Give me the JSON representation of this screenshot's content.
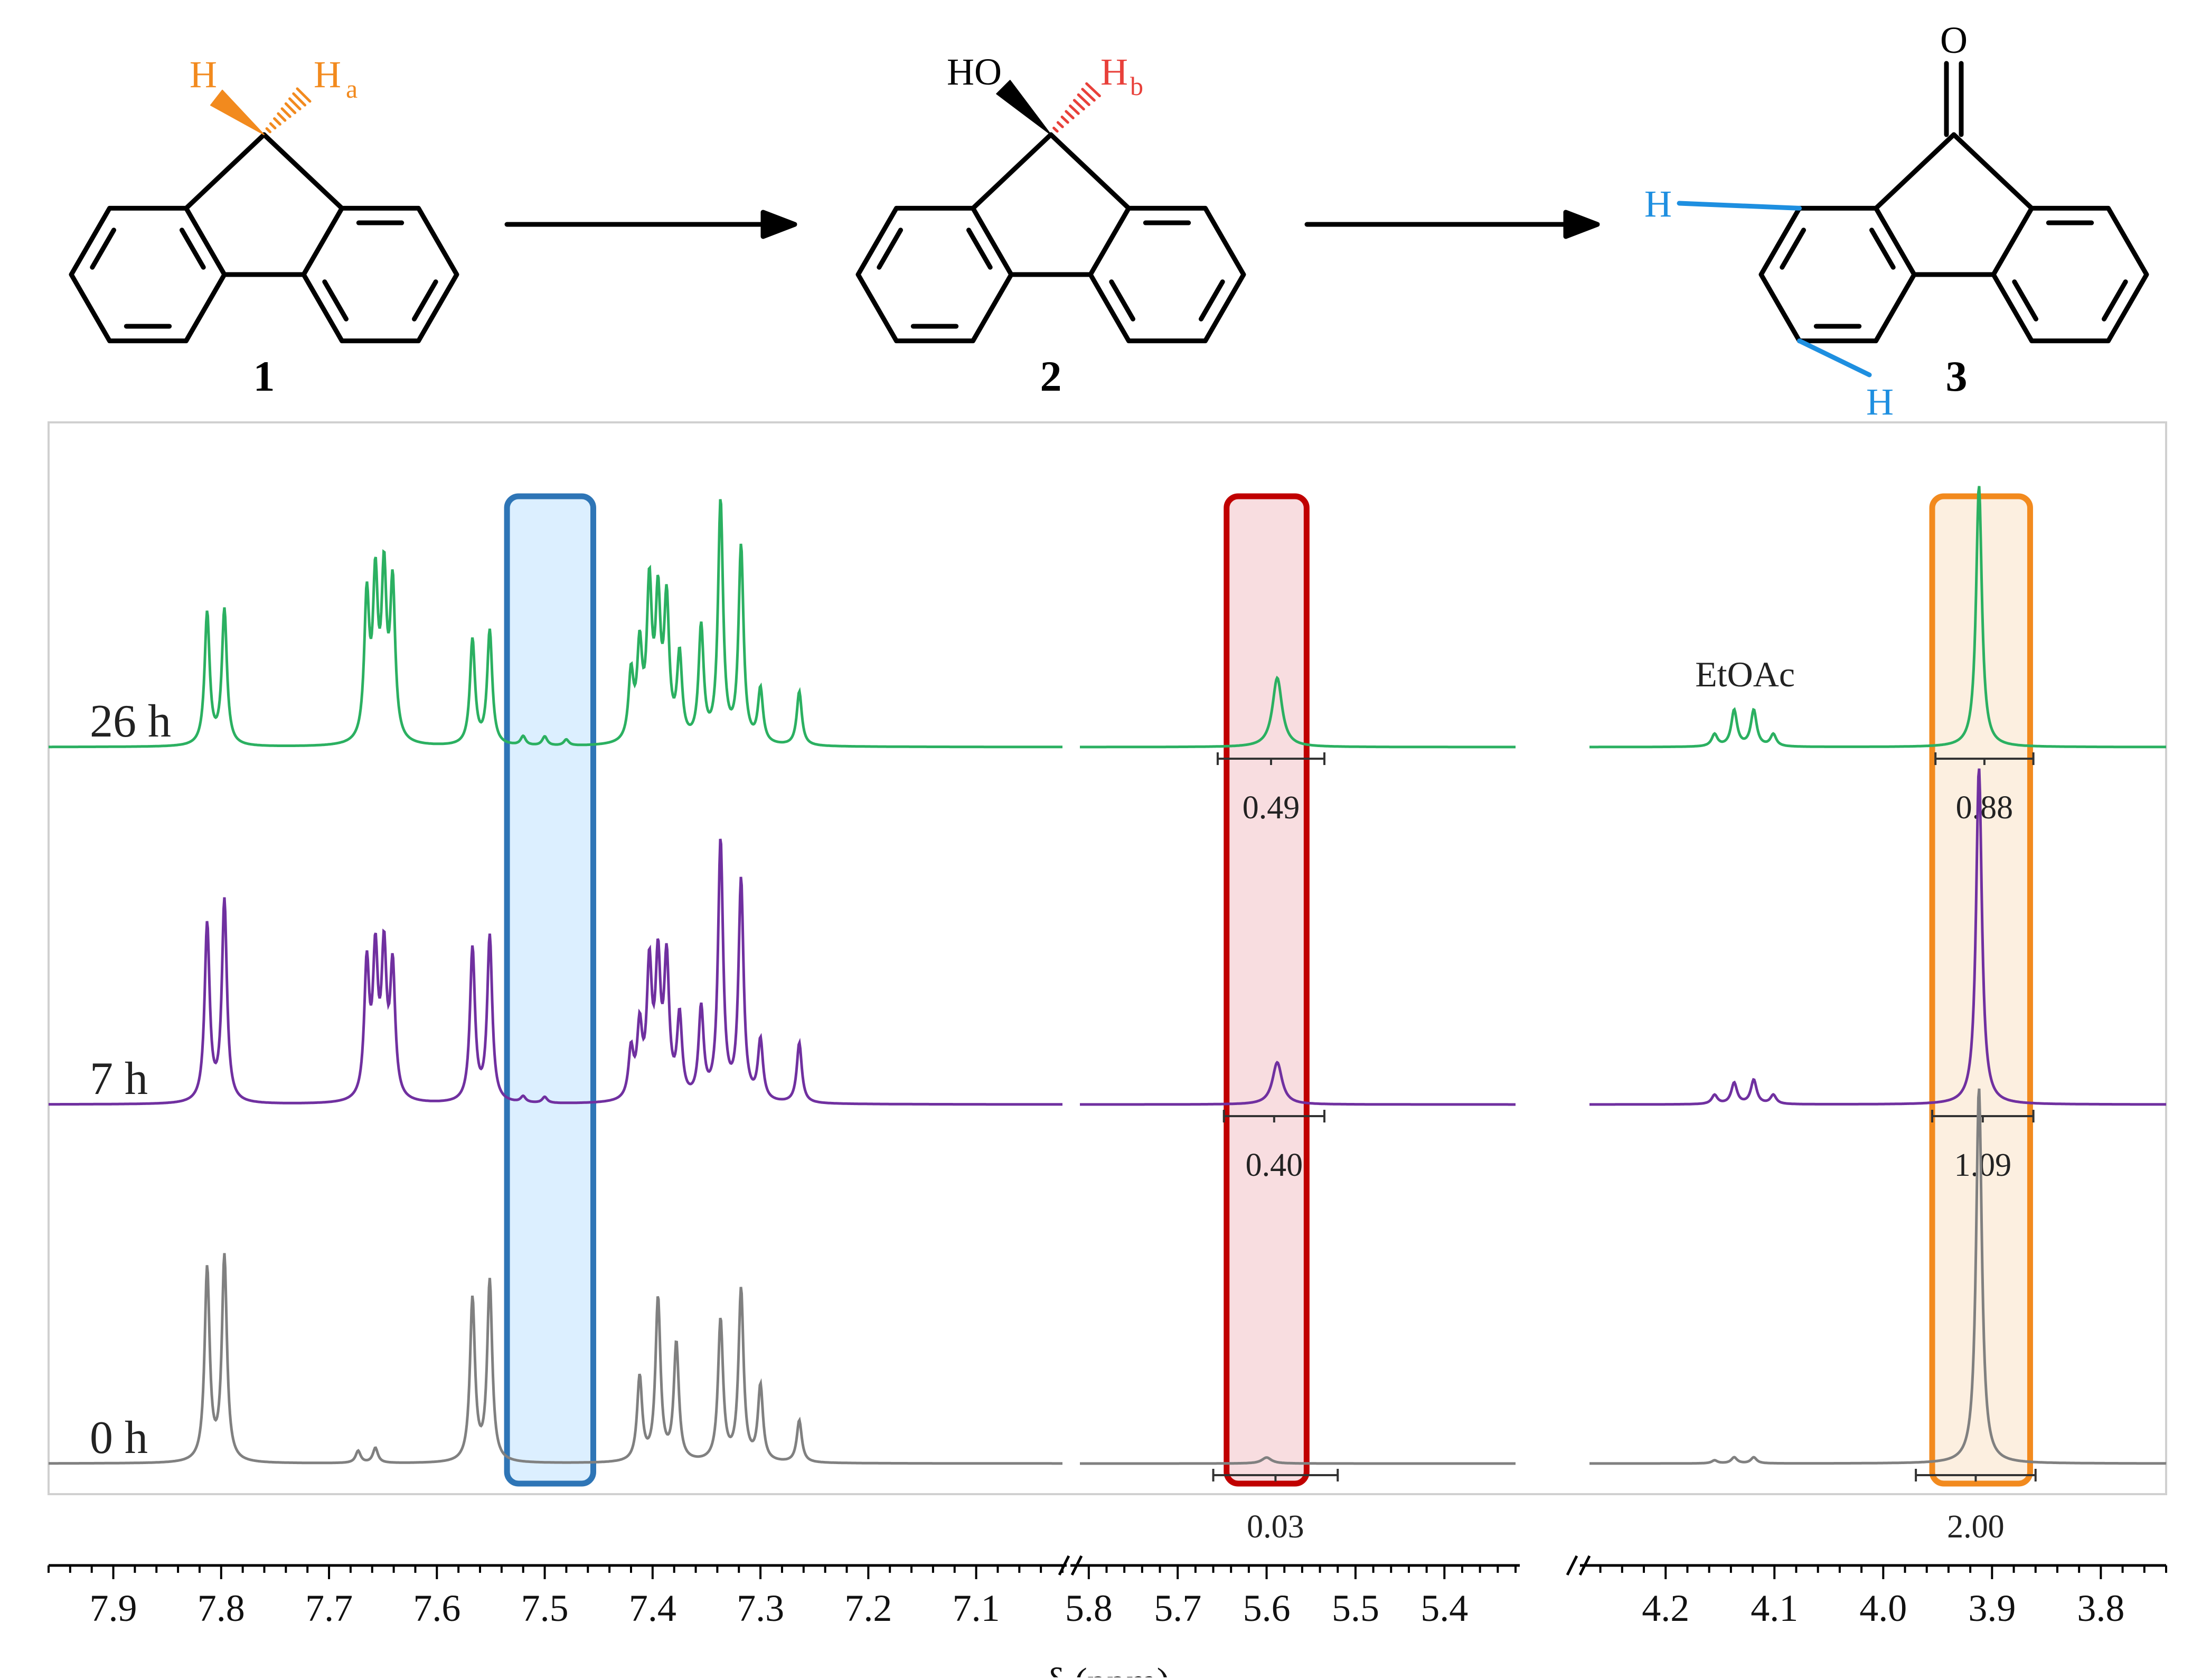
{
  "colors": {
    "orange": "#f28a1e",
    "red": "#e8403a",
    "blue": "#1e8fe0",
    "green": "#2bb061",
    "purple": "#7030a0",
    "gray": "#808080",
    "box_blue": "#2e75b6",
    "box_red": "#c00000",
    "box_orange": "#f28a1e",
    "fill_blue": "#dcefff",
    "fill_red": "#f8dde0",
    "fill_orange": "#fcefe0"
  },
  "scheme": {
    "compound1": {
      "label": "1",
      "h_left": "H",
      "h_right": "H",
      "h_right_sub": "a"
    },
    "compound2": {
      "label": "2",
      "oh": "HO",
      "h": "H",
      "h_sub": "b"
    },
    "compound3": {
      "label": "3",
      "o": "O",
      "h_top": "H",
      "h_bottom": "H"
    }
  },
  "chart_data": {
    "type": "line",
    "xlabel": "δ (ppm)",
    "x_axis": {
      "reversed": true,
      "segments": [
        {
          "range": [
            7.96,
            7.02
          ],
          "ticks": [
            "7.9",
            "7.8",
            "7.7",
            "7.6",
            "7.5",
            "7.4",
            "7.3",
            "7.2",
            "7.1"
          ]
        },
        {
          "range": [
            5.81,
            5.32
          ],
          "ticks": [
            "5.8",
            "5.7",
            "5.6",
            "5.5",
            "5.4"
          ]
        },
        {
          "range": [
            4.27,
            3.74
          ],
          "ticks": [
            "4.2",
            "4.1",
            "4.0",
            "3.9",
            "3.8"
          ]
        }
      ]
    },
    "highlight_regions": [
      {
        "name": "blue",
        "ppm_range": [
          7.535,
          7.455
        ]
      },
      {
        "name": "red",
        "ppm_range": [
          5.645,
          5.555
        ]
      },
      {
        "name": "orange",
        "ppm_range": [
          3.955,
          3.865
        ]
      }
    ],
    "series": [
      {
        "name": "26 h",
        "peaks": [
          [
            7.813,
            0.44
          ],
          [
            7.797,
            0.45
          ],
          [
            7.665,
            0.47
          ],
          [
            7.657,
            0.51
          ],
          [
            7.649,
            0.53
          ],
          [
            7.641,
            0.51
          ],
          [
            7.567,
            0.35
          ],
          [
            7.551,
            0.38
          ],
          [
            7.52,
            0.03
          ],
          [
            7.5,
            0.03
          ],
          [
            7.48,
            0.02
          ],
          [
            7.42,
            0.22
          ],
          [
            7.412,
            0.3
          ],
          [
            7.403,
            0.5
          ],
          [
            7.395,
            0.45
          ],
          [
            7.387,
            0.45
          ],
          [
            7.375,
            0.28
          ],
          [
            7.355,
            0.38
          ],
          [
            7.337,
            0.8
          ],
          [
            7.318,
            0.65
          ],
          [
            7.3,
            0.18
          ],
          [
            7.264,
            0.18
          ],
          [
            5.588,
            0.23
          ],
          [
            4.155,
            0.04
          ],
          [
            4.137,
            0.12
          ],
          [
            4.119,
            0.12
          ],
          [
            4.101,
            0.04
          ],
          [
            3.912,
            0.87
          ]
        ],
        "integrals": [
          {
            "range": [
              5.655,
              5.535
            ],
            "label": "0.49"
          },
          {
            "range": [
              3.952,
              3.862
            ],
            "label": "0.88"
          }
        ]
      },
      {
        "name": "7 h",
        "peaks": [
          [
            7.813,
            0.59
          ],
          [
            7.797,
            0.67
          ],
          [
            7.665,
            0.44
          ],
          [
            7.657,
            0.46
          ],
          [
            7.649,
            0.47
          ],
          [
            7.641,
            0.43
          ],
          [
            7.567,
            0.51
          ],
          [
            7.551,
            0.55
          ],
          [
            7.52,
            0.02
          ],
          [
            7.5,
            0.02
          ],
          [
            7.42,
            0.16
          ],
          [
            7.412,
            0.23
          ],
          [
            7.403,
            0.43
          ],
          [
            7.395,
            0.44
          ],
          [
            7.387,
            0.45
          ],
          [
            7.375,
            0.27
          ],
          [
            7.355,
            0.3
          ],
          [
            7.337,
            0.86
          ],
          [
            7.318,
            0.73
          ],
          [
            7.3,
            0.2
          ],
          [
            7.264,
            0.2
          ],
          [
            5.588,
            0.14
          ],
          [
            4.155,
            0.03
          ],
          [
            4.137,
            0.07
          ],
          [
            4.119,
            0.08
          ],
          [
            4.101,
            0.03
          ],
          [
            3.912,
            1.12
          ]
        ],
        "integrals": [
          {
            "range": [
              5.648,
              5.535
            ],
            "label": "0.40"
          },
          {
            "range": [
              3.955,
              3.862
            ],
            "label": "1.09"
          }
        ]
      },
      {
        "name": "0 h",
        "peaks": [
          [
            7.813,
            0.64
          ],
          [
            7.797,
            0.68
          ],
          [
            7.673,
            0.04
          ],
          [
            7.657,
            0.05
          ],
          [
            7.567,
            0.54
          ],
          [
            7.551,
            0.6
          ],
          [
            7.412,
            0.28
          ],
          [
            7.395,
            0.54
          ],
          [
            7.378,
            0.39
          ],
          [
            7.337,
            0.47
          ],
          [
            7.318,
            0.57
          ],
          [
            7.3,
            0.25
          ],
          [
            7.264,
            0.14
          ],
          [
            5.6,
            0.02
          ],
          [
            4.155,
            0.01
          ],
          [
            4.137,
            0.02
          ],
          [
            4.119,
            0.02
          ],
          [
            3.912,
            1.25
          ]
        ],
        "integrals": [
          {
            "range": [
              5.66,
              5.52
            ],
            "label": "0.03"
          },
          {
            "range": [
              3.97,
              3.86
            ],
            "label": "2.00"
          }
        ]
      }
    ],
    "annotations": [
      {
        "text": "EtOAc",
        "at_ppm": 4.127
      }
    ]
  }
}
